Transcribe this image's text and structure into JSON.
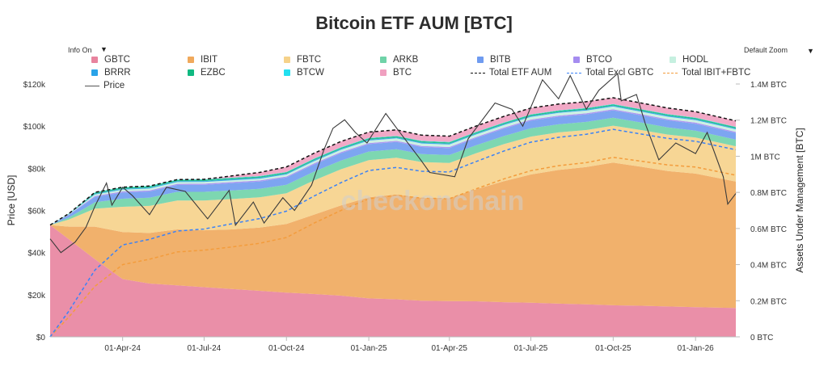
{
  "title": "Bitcoin ETF AUM [BTC]",
  "controls": {
    "info_toggle": "Info On",
    "zoom": "Default Zoom"
  },
  "legend": [
    {
      "name": "GBTC",
      "color": "#e8839e",
      "type": "box"
    },
    {
      "name": "IBIT",
      "color": "#f0a95c",
      "type": "box"
    },
    {
      "name": "FBTC",
      "color": "#f6d28a",
      "type": "box"
    },
    {
      "name": "ARKB",
      "color": "#6fd3a8",
      "type": "box"
    },
    {
      "name": "BITB",
      "color": "#6f9bf0",
      "type": "box"
    },
    {
      "name": "BTCO",
      "color": "#a58cf0",
      "type": "box"
    },
    {
      "name": "HODL",
      "color": "#c6f0e0",
      "type": "box"
    },
    {
      "name": "BRRR",
      "color": "#2aa3e8",
      "type": "box"
    },
    {
      "name": "EZBC",
      "color": "#10b981",
      "type": "box"
    },
    {
      "name": "BTCW",
      "color": "#22e0f0",
      "type": "box"
    },
    {
      "name": "BTC",
      "color": "#f0a0c0",
      "type": "box"
    },
    {
      "name": "Total ETF AUM",
      "color": "#111111",
      "type": "dash"
    },
    {
      "name": "Total Excl GBTC",
      "color": "#3b82f6",
      "type": "dash"
    },
    {
      "name": "Total IBIT+FBTC",
      "color": "#f39c3c",
      "type": "dash"
    },
    {
      "name": "Price",
      "color": "#555555",
      "type": "line"
    }
  ],
  "watermark": "checkonchain",
  "chart_data": {
    "type": "area",
    "y_left": {
      "label": "Price [USD]",
      "ticks": [
        "$0",
        "$20k",
        "$40k",
        "$60k",
        "$80k",
        "$100k",
        "$120k"
      ],
      "range": [
        0,
        120000
      ]
    },
    "y_right": {
      "label": "Assets Under Management [BTC]",
      "ticks": [
        "0 BTC",
        "0.2M BTC",
        "0.4M BTC",
        "0.6M BTC",
        "0.8M BTC",
        "1M BTC",
        "1.2M BTC",
        "1.4M BTC"
      ],
      "range": [
        0,
        1400000
      ]
    },
    "x_ticks": [
      "01-Apr-24",
      "01-Jul-24",
      "01-Oct-24",
      "01-Jan-25",
      "01-Apr-25",
      "01-Jul-25",
      "01-Oct-25",
      "01-Jan-26"
    ],
    "x_range": [
      "2024-01-11",
      "2026-02-15"
    ],
    "dates": [
      "2024-01-11",
      "2024-02-01",
      "2024-03-01",
      "2024-04-01",
      "2024-05-01",
      "2024-06-01",
      "2024-07-01",
      "2024-08-01",
      "2024-09-01",
      "2024-10-01",
      "2024-11-01",
      "2024-12-01",
      "2025-01-01",
      "2025-02-01",
      "2025-03-01",
      "2025-04-01",
      "2025-05-01",
      "2025-06-01",
      "2025-07-01",
      "2025-08-01",
      "2025-09-01",
      "2025-10-01",
      "2025-11-01",
      "2025-12-01",
      "2026-01-01",
      "2026-02-15"
    ],
    "series": [
      {
        "name": "GBTC",
        "values": [
          619000,
          540000,
          430000,
          320000,
          295000,
          285000,
          275000,
          265000,
          255000,
          245000,
          237000,
          228000,
          213000,
          208000,
          200000,
          198000,
          197000,
          192000,
          189000,
          184000,
          180000,
          175000,
          172000,
          168000,
          164000,
          160000
        ]
      },
      {
        "name": "IBIT",
        "values": [
          0,
          70000,
          180000,
          260000,
          280000,
          310000,
          315000,
          330000,
          350000,
          380000,
          440000,
          500000,
          560000,
          580000,
          570000,
          570000,
          620000,
          670000,
          710000,
          740000,
          760000,
          790000,
          770000,
          750000,
          740000,
          700000
        ]
      },
      {
        "name": "FBTC",
        "values": [
          0,
          40000,
          100000,
          140000,
          150000,
          160000,
          165000,
          168000,
          168000,
          170000,
          190000,
          200000,
          205000,
          204000,
          198000,
          195000,
          200000,
          205000,
          210000,
          208000,
          205000,
          204000,
          203000,
          202000,
          200000,
          195000
        ]
      },
      {
        "name": "ARKB",
        "values": [
          0,
          10000,
          35000,
          45000,
          45000,
          48000,
          48000,
          48000,
          47000,
          47000,
          48000,
          48000,
          48000,
          47000,
          44000,
          44000,
          44000,
          45000,
          46000,
          45000,
          45000,
          44000,
          42000,
          40000,
          38000,
          37000
        ]
      },
      {
        "name": "BITB",
        "values": [
          0,
          15000,
          30000,
          34000,
          35000,
          38000,
          39000,
          40000,
          40000,
          40000,
          40000,
          41000,
          41000,
          40000,
          39000,
          38000,
          40000,
          41000,
          42000,
          42000,
          42000,
          41000,
          40000,
          39000,
          38000,
          37000
        ]
      },
      {
        "name": "BTCO",
        "values": [
          0,
          2000,
          5000,
          6000,
          6000,
          6000,
          6000,
          6000,
          6000,
          6000,
          6000,
          6000,
          6000,
          6000,
          6000,
          6000,
          6000,
          6000,
          6000,
          6000,
          6000,
          6000,
          6000,
          6000,
          6000,
          6000
        ]
      },
      {
        "name": "HODL",
        "values": [
          0,
          2000,
          8000,
          10000,
          10000,
          10000,
          10000,
          10000,
          10000,
          11000,
          12000,
          13000,
          14000,
          14000,
          14000,
          14000,
          14000,
          14000,
          15000,
          15000,
          15000,
          15000,
          14000,
          14000,
          14000,
          14000
        ]
      },
      {
        "name": "BRRR",
        "values": [
          0,
          1000,
          4000,
          5000,
          5000,
          5000,
          5000,
          5000,
          5000,
          5000,
          5000,
          5000,
          5000,
          5000,
          5000,
          5000,
          5000,
          5000,
          5000,
          5000,
          5000,
          5000,
          5000,
          5000,
          5000,
          5000
        ]
      },
      {
        "name": "EZBC",
        "values": [
          0,
          2000,
          6000,
          7000,
          7000,
          7000,
          7000,
          7000,
          7000,
          7000,
          7000,
          7000,
          7000,
          7000,
          7000,
          7000,
          7000,
          7000,
          7000,
          7000,
          7000,
          7000,
          7000,
          7000,
          7000,
          7000
        ]
      },
      {
        "name": "BTCW",
        "values": [
          0,
          500,
          2000,
          2000,
          2000,
          2000,
          2000,
          2000,
          2000,
          2000,
          2000,
          2000,
          2000,
          2000,
          2000,
          2000,
          2000,
          2000,
          2000,
          2000,
          2000,
          2000,
          2000,
          2000,
          2000,
          2000
        ]
      },
      {
        "name": "BTC",
        "values": [
          0,
          0,
          0,
          0,
          0,
          0,
          0,
          10000,
          20000,
          28000,
          30000,
          32000,
          33000,
          33000,
          32000,
          32000,
          33000,
          34000,
          35000,
          35000,
          35000,
          35000,
          34000,
          34000,
          33000,
          33000
        ]
      }
    ],
    "price_series": {
      "name": "Price",
      "dates": [
        "2024-01-11",
        "2024-01-23",
        "2024-02-08",
        "2024-02-20",
        "2024-03-01",
        "2024-03-14",
        "2024-03-20",
        "2024-04-01",
        "2024-04-12",
        "2024-05-01",
        "2024-05-20",
        "2024-06-10",
        "2024-07-05",
        "2024-07-29",
        "2024-08-05",
        "2024-08-25",
        "2024-09-06",
        "2024-09-27",
        "2024-10-10",
        "2024-10-29",
        "2024-11-12",
        "2024-11-22",
        "2024-12-05",
        "2024-12-17",
        "2024-12-30",
        "2025-01-20",
        "2025-02-03",
        "2025-02-28",
        "2025-03-10",
        "2025-04-07",
        "2025-04-22",
        "2025-05-22",
        "2025-06-10",
        "2025-06-22",
        "2025-07-14",
        "2025-08-01",
        "2025-08-14",
        "2025-09-01",
        "2025-09-15",
        "2025-10-06",
        "2025-10-10",
        "2025-10-27",
        "2025-11-06",
        "2025-11-21",
        "2025-12-10",
        "2026-01-01",
        "2026-01-14",
        "2026-02-01",
        "2026-02-06",
        "2026-02-15"
      ],
      "values": [
        46500,
        40000,
        45000,
        52000,
        62000,
        73000,
        62500,
        71000,
        67000,
        58000,
        71000,
        69000,
        56000,
        69500,
        53000,
        64000,
        54000,
        66000,
        60000,
        72000,
        89000,
        99000,
        103000,
        97000,
        92000,
        106000,
        98000,
        84000,
        78000,
        76000,
        94000,
        111000,
        108000,
        100000,
        122000,
        113000,
        124000,
        108000,
        117000,
        125000,
        112000,
        115000,
        101000,
        84000,
        92000,
        87000,
        97000,
        76000,
        63000,
        68000
      ]
    }
  }
}
